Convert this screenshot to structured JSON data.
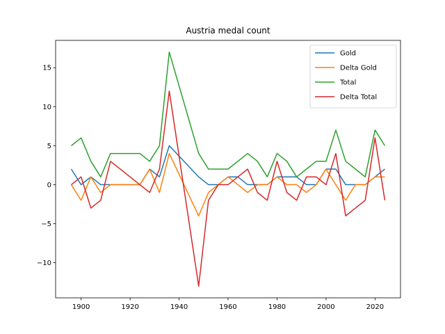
{
  "chart_data": {
    "type": "line",
    "title": "Austria medal count",
    "xlabel": "",
    "ylabel": "",
    "xlim": [
      1889.6,
      2030.4
    ],
    "ylim": [
      -14.5,
      18.5
    ],
    "xticks": [
      1900,
      1920,
      1940,
      1960,
      1980,
      2000,
      2020
    ],
    "yticks": [
      -10,
      -5,
      0,
      5,
      10,
      15
    ],
    "grid": false,
    "legend_position": "top-right",
    "x": [
      1896,
      1900,
      1904,
      1908,
      1912,
      1924,
      1928,
      1932,
      1936,
      1948,
      1952,
      1956,
      1960,
      1964,
      1968,
      1972,
      1976,
      1980,
      1984,
      1988,
      1992,
      1996,
      2000,
      2004,
      2008,
      2012,
      2016,
      2020,
      2024
    ],
    "series": [
      {
        "name": "Gold",
        "color": "#1f77b4",
        "values": [
          2,
          0,
          1,
          0,
          0,
          0,
          2,
          1,
          5,
          1,
          0,
          0,
          1,
          1,
          0,
          0,
          0,
          1,
          1,
          1,
          0,
          0,
          2,
          2,
          0,
          0,
          0,
          1,
          2
        ]
      },
      {
        "name": "Delta Gold",
        "color": "#ff7f0e",
        "values": [
          0,
          -2,
          1,
          -1,
          0,
          0,
          2,
          -1,
          4,
          -4,
          -1,
          0,
          1,
          0,
          -1,
          0,
          0,
          1,
          0,
          0,
          -1,
          0,
          2,
          0,
          -2,
          0,
          0,
          1,
          1
        ]
      },
      {
        "name": "Total",
        "color": "#2ca02c",
        "values": [
          5,
          6,
          3,
          1,
          4,
          4,
          3,
          5,
          17,
          4,
          2,
          2,
          2,
          3,
          4,
          3,
          1,
          4,
          3,
          1,
          2,
          3,
          3,
          7,
          3,
          2,
          1,
          7,
          5
        ]
      },
      {
        "name": "Delta Total",
        "color": "#d62728",
        "values": [
          0,
          1,
          -3,
          -2,
          3,
          0,
          -1,
          2,
          12,
          -13,
          -2,
          0,
          0,
          1,
          2,
          -1,
          -2,
          3,
          -1,
          -2,
          1,
          1,
          0,
          4,
          -4,
          -3,
          -2,
          6,
          -2
        ]
      }
    ]
  }
}
